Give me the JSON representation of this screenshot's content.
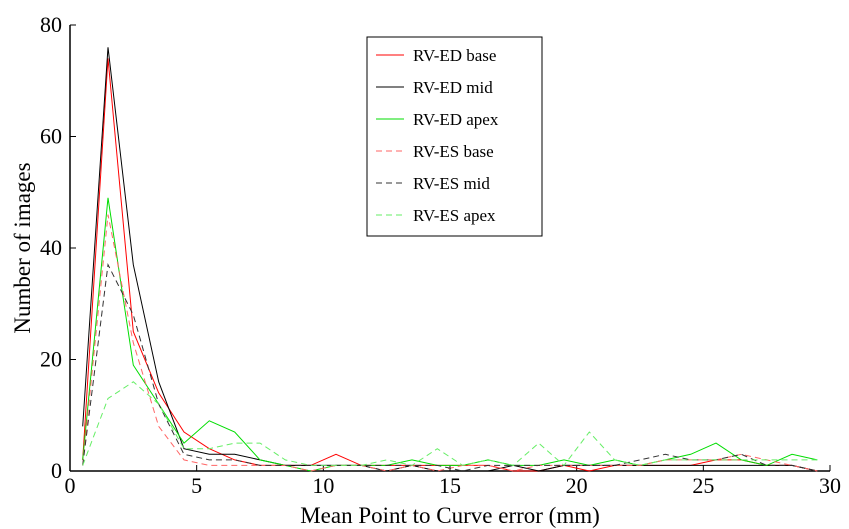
{
  "chart_data": {
    "type": "line",
    "title": "",
    "xlabel": "Mean Point to Curve error (mm)",
    "ylabel": "Number of images",
    "xlim": [
      0,
      30
    ],
    "ylim": [
      0,
      80
    ],
    "xticks": [
      0,
      5,
      10,
      15,
      20,
      25,
      30
    ],
    "yticks": [
      0,
      20,
      40,
      60,
      80
    ],
    "grid": false,
    "legend_position": "top-center",
    "x": [
      0.5,
      1.5,
      2.5,
      3.5,
      4.5,
      5.5,
      6.5,
      7.5,
      8.5,
      9.5,
      10.5,
      11.5,
      12.5,
      13.5,
      14.5,
      15.5,
      16.5,
      17.5,
      18.5,
      19.5,
      20.5,
      21.5,
      22.5,
      23.5,
      24.5,
      25.5,
      26.5,
      27.5,
      28.5,
      29.5
    ],
    "series": [
      {
        "name": "RV-ED base",
        "color": "#ff0000",
        "dash": "solid",
        "values": [
          2,
          74,
          25,
          14,
          7,
          4,
          2,
          1,
          1,
          1,
          3,
          1,
          1,
          1,
          1,
          1,
          1,
          0,
          0,
          1,
          0,
          1,
          1,
          1,
          1,
          2,
          2,
          1,
          1,
          0
        ]
      },
      {
        "name": "RV-ED mid",
        "color": "#000000",
        "dash": "solid",
        "values": [
          8,
          76,
          37,
          16,
          4,
          3,
          3,
          2,
          1,
          1,
          1,
          1,
          0,
          1,
          0,
          0,
          0,
          1,
          0,
          1,
          1,
          1,
          1,
          1,
          1,
          1,
          1,
          1,
          1,
          0
        ]
      },
      {
        "name": "RV-ED apex",
        "color": "#00dd00",
        "dash": "solid",
        "values": [
          2,
          49,
          19,
          12,
          5,
          9,
          7,
          2,
          1,
          0,
          1,
          1,
          1,
          2,
          1,
          1,
          2,
          1,
          1,
          2,
          1,
          2,
          1,
          2,
          3,
          5,
          2,
          1,
          3,
          2
        ]
      },
      {
        "name": "RV-ES base",
        "color": "#ff6666",
        "dash": "dashed",
        "values": [
          1,
          46,
          23,
          8,
          2,
          1,
          1,
          1,
          1,
          0,
          1,
          1,
          0,
          1,
          0,
          1,
          1,
          0,
          1,
          1,
          1,
          1,
          1,
          2,
          2,
          2,
          3,
          2,
          1,
          0
        ]
      },
      {
        "name": "RV-ES mid",
        "color": "#333333",
        "dash": "dashed",
        "values": [
          1,
          37,
          28,
          12,
          3,
          2,
          2,
          1,
          1,
          1,
          1,
          1,
          1,
          1,
          1,
          0,
          1,
          1,
          1,
          1,
          1,
          1,
          2,
          3,
          2,
          2,
          3,
          1,
          1,
          0
        ]
      },
      {
        "name": "RV-ES apex",
        "color": "#66ee66",
        "dash": "dashed",
        "values": [
          1,
          13,
          16,
          12,
          4,
          4,
          5,
          5,
          2,
          1,
          1,
          1,
          2,
          1,
          4,
          1,
          2,
          1,
          5,
          1,
          7,
          2,
          1,
          2,
          2,
          2,
          2,
          2,
          2,
          2
        ]
      }
    ]
  }
}
